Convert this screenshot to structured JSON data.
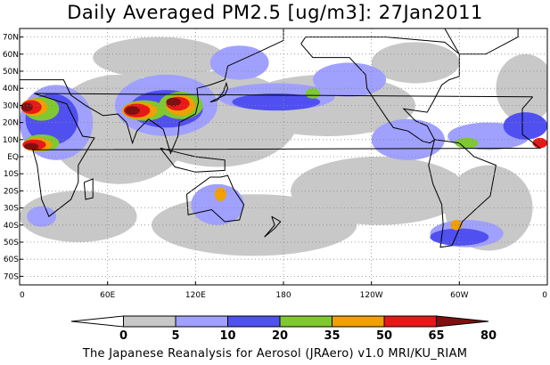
{
  "title": "Daily Averaged PM2.5 [ug/m3]: 27Jan2011",
  "credit": "The Japanese Reanalysis for Aerosol (JRAero) v1.0 MRI/KU_RIAM",
  "map": {
    "projection": "Plate Carree, Pacific-centered",
    "lon_range": [
      0,
      360
    ],
    "lat_range": [
      -75,
      75
    ],
    "lat_ticks": [
      {
        "value": 70,
        "label": "70N"
      },
      {
        "value": 60,
        "label": "60N"
      },
      {
        "value": 50,
        "label": "50N"
      },
      {
        "value": 40,
        "label": "40N"
      },
      {
        "value": 30,
        "label": "30N"
      },
      {
        "value": 20,
        "label": "20N"
      },
      {
        "value": 10,
        "label": "10N"
      },
      {
        "value": 0,
        "label": "EQ"
      },
      {
        "value": -10,
        "label": "10S"
      },
      {
        "value": -20,
        "label": "20S"
      },
      {
        "value": -30,
        "label": "30S"
      },
      {
        "value": -40,
        "label": "40S"
      },
      {
        "value": -50,
        "label": "50S"
      },
      {
        "value": -60,
        "label": "60S"
      },
      {
        "value": -70,
        "label": "70S"
      }
    ],
    "lon_ticks": [
      {
        "value": 0,
        "label": "0"
      },
      {
        "value": 60,
        "label": "60E"
      },
      {
        "value": 120,
        "label": "120E"
      },
      {
        "value": 180,
        "label": "180"
      },
      {
        "value": 240,
        "label": "120W"
      },
      {
        "value": 300,
        "label": "60W"
      },
      {
        "value": 360,
        "label": "0"
      }
    ],
    "grid": "dotted",
    "coastline_color": "#000000"
  },
  "colorbar": {
    "labels": [
      "0",
      "5",
      "10",
      "20",
      "35",
      "50",
      "65",
      "80"
    ],
    "colors": [
      "#ffffff",
      "#c8c8c8",
      "#a0a0ff",
      "#5050f0",
      "#80c830",
      "#f0a000",
      "#e81818",
      "#801010"
    ]
  },
  "fields": [
    {
      "level": 1,
      "color": "#c8c8c8",
      "regions": [
        {
          "lon": 68,
          "lat": 16,
          "rlon": 48,
          "rlat": 32
        },
        {
          "lon": 135,
          "lat": 22,
          "rlon": 55,
          "rlat": 28
        },
        {
          "lon": 210,
          "lat": 30,
          "rlon": 60,
          "rlat": 18
        },
        {
          "lon": 245,
          "lat": -20,
          "rlon": 60,
          "rlat": 20
        },
        {
          "lon": 160,
          "lat": -40,
          "rlon": 70,
          "rlat": 18
        },
        {
          "lon": 40,
          "lat": -35,
          "rlon": 40,
          "rlat": 15
        },
        {
          "lon": 320,
          "lat": -30,
          "rlon": 30,
          "rlat": 25
        },
        {
          "lon": 345,
          "lat": 40,
          "rlon": 20,
          "rlat": 20
        },
        {
          "lon": 95,
          "lat": 58,
          "rlon": 45,
          "rlat": 12
        },
        {
          "lon": 270,
          "lat": 55,
          "rlon": 30,
          "rlat": 12
        }
      ]
    },
    {
      "level": 2,
      "color": "#a0a0ff",
      "regions": [
        {
          "lon": 25,
          "lat": 20,
          "rlon": 25,
          "rlat": 22
        },
        {
          "lon": 100,
          "lat": 30,
          "rlon": 35,
          "rlat": 18
        },
        {
          "lon": 175,
          "lat": 35,
          "rlon": 40,
          "rlat": 8
        },
        {
          "lon": 225,
          "lat": 45,
          "rlon": 25,
          "rlat": 10
        },
        {
          "lon": 265,
          "lat": 10,
          "rlon": 25,
          "rlat": 12
        },
        {
          "lon": 320,
          "lat": 12,
          "rlon": 28,
          "rlat": 8
        },
        {
          "lon": 135,
          "lat": -28,
          "rlon": 18,
          "rlat": 12
        },
        {
          "lon": 305,
          "lat": -45,
          "rlon": 25,
          "rlat": 8
        },
        {
          "lon": 15,
          "lat": -35,
          "rlon": 10,
          "rlat": 6
        },
        {
          "lon": 150,
          "lat": 55,
          "rlon": 20,
          "rlat": 10
        }
      ]
    },
    {
      "level": 3,
      "color": "#5050f0",
      "regions": [
        {
          "lon": 22,
          "lat": 22,
          "rlon": 18,
          "rlat": 15
        },
        {
          "lon": 100,
          "lat": 28,
          "rlon": 25,
          "rlat": 11
        },
        {
          "lon": 175,
          "lat": 32,
          "rlon": 30,
          "rlat": 5
        },
        {
          "lon": 300,
          "lat": -47,
          "rlon": 20,
          "rlat": 5
        },
        {
          "lon": 345,
          "lat": 18,
          "rlon": 15,
          "rlat": 8
        }
      ]
    },
    {
      "level": 4,
      "color": "#80c830",
      "regions": [
        {
          "lon": 15,
          "lat": 28,
          "rlon": 12,
          "rlat": 7
        },
        {
          "lon": 15,
          "lat": 8,
          "rlon": 12,
          "rlat": 5
        },
        {
          "lon": 85,
          "lat": 27,
          "rlon": 15,
          "rlat": 6
        },
        {
          "lon": 110,
          "lat": 30,
          "rlon": 15,
          "rlat": 8
        },
        {
          "lon": 200,
          "lat": 37,
          "rlon": 5,
          "rlat": 3
        },
        {
          "lon": 305,
          "lat": 8,
          "rlon": 8,
          "rlat": 3
        }
      ]
    },
    {
      "level": 5,
      "color": "#f0a000",
      "regions": [
        {
          "lon": 10,
          "lat": 29,
          "rlon": 9,
          "rlat": 5
        },
        {
          "lon": 12,
          "lat": 7,
          "rlon": 10,
          "rlat": 4
        },
        {
          "lon": 82,
          "lat": 27,
          "rlon": 12,
          "rlat": 5
        },
        {
          "lon": 110,
          "lat": 30,
          "rlon": 10,
          "rlat": 6
        },
        {
          "lon": 137,
          "lat": -22,
          "rlon": 4,
          "rlat": 4
        },
        {
          "lon": 298,
          "lat": -40,
          "rlon": 4,
          "rlat": 3
        }
      ]
    },
    {
      "level": 6,
      "color": "#e81818",
      "regions": [
        {
          "lon": 8,
          "lat": 29,
          "rlon": 7,
          "rlat": 4
        },
        {
          "lon": 10,
          "lat": 7,
          "rlon": 8,
          "rlat": 3
        },
        {
          "lon": 80,
          "lat": 27,
          "rlon": 9,
          "rlat": 4
        },
        {
          "lon": 108,
          "lat": 31,
          "rlon": 8,
          "rlat": 4
        },
        {
          "lon": 355,
          "lat": 8,
          "rlon": 5,
          "rlat": 3
        }
      ]
    },
    {
      "level": 7,
      "color": "#801010",
      "regions": [
        {
          "lon": 5,
          "lat": 29,
          "rlon": 4,
          "rlat": 2.5
        },
        {
          "lon": 8,
          "lat": 6,
          "rlon": 5,
          "rlat": 2
        },
        {
          "lon": 77,
          "lat": 27,
          "rlon": 5,
          "rlat": 2.5
        },
        {
          "lon": 105,
          "lat": 32,
          "rlon": 5,
          "rlat": 2.5
        }
      ]
    }
  ],
  "coastlines": [
    {
      "name": "africa",
      "pts": [
        [
          350,
          35
        ],
        [
          10,
          37
        ],
        [
          32,
          31
        ],
        [
          43,
          12
        ],
        [
          51,
          11
        ],
        [
          40,
          -5
        ],
        [
          40,
          -15
        ],
        [
          35,
          -25
        ],
        [
          20,
          -35
        ],
        [
          15,
          -25
        ],
        [
          12,
          -5
        ],
        [
          9,
          4
        ],
        [
          355,
          5
        ],
        [
          343,
          13
        ],
        [
          343,
          28
        ],
        [
          350,
          35
        ]
      ]
    },
    {
      "name": "eurasia",
      "pts": [
        [
          0,
          45
        ],
        [
          30,
          45
        ],
        [
          35,
          36
        ],
        [
          45,
          30
        ],
        [
          57,
          24
        ],
        [
          67,
          25
        ],
        [
          73,
          20
        ],
        [
          77,
          8
        ],
        [
          80,
          15
        ],
        [
          88,
          22
        ],
        [
          98,
          16
        ],
        [
          103,
          2
        ],
        [
          108,
          12
        ],
        [
          109,
          20
        ],
        [
          120,
          25
        ],
        [
          122,
          32
        ],
        [
          121,
          40
        ],
        [
          130,
          42
        ],
        [
          140,
          45
        ],
        [
          142,
          53
        ],
        [
          160,
          60
        ],
        [
          180,
          68
        ],
        [
          180,
          75
        ],
        [
          0,
          75
        ],
        [
          0,
          45
        ]
      ]
    },
    {
      "name": "indonesia",
      "pts": [
        [
          96,
          5
        ],
        [
          106,
          -6
        ],
        [
          120,
          -9
        ],
        [
          140,
          -8
        ],
        [
          140,
          -2
        ],
        [
          120,
          0
        ],
        [
          110,
          2
        ],
        [
          96,
          5
        ]
      ]
    },
    {
      "name": "australia",
      "pts": [
        [
          114,
          -22
        ],
        [
          130,
          -12
        ],
        [
          137,
          -12
        ],
        [
          142,
          -11
        ],
        [
          146,
          -19
        ],
        [
          153,
          -28
        ],
        [
          150,
          -37
        ],
        [
          140,
          -38
        ],
        [
          131,
          -31
        ],
        [
          115,
          -34
        ],
        [
          114,
          -22
        ]
      ]
    },
    {
      "name": "north-america",
      "pts": [
        [
          192,
          66
        ],
        [
          200,
          58
        ],
        [
          225,
          58
        ],
        [
          236,
          48
        ],
        [
          237,
          40
        ],
        [
          243,
          32
        ],
        [
          250,
          23
        ],
        [
          255,
          17
        ],
        [
          265,
          15
        ],
        [
          275,
          9
        ],
        [
          280,
          8
        ],
        [
          283,
          10
        ],
        [
          278,
          18
        ],
        [
          270,
          21
        ],
        [
          262,
          28
        ],
        [
          278,
          26
        ],
        [
          282,
          32
        ],
        [
          288,
          42
        ],
        [
          293,
          45
        ],
        [
          300,
          47
        ],
        [
          300,
          60
        ],
        [
          290,
          67
        ],
        [
          250,
          70
        ],
        [
          195,
          70
        ],
        [
          192,
          66
        ]
      ]
    },
    {
      "name": "south-america",
      "pts": [
        [
          283,
          10
        ],
        [
          300,
          8
        ],
        [
          310,
          0
        ],
        [
          325,
          -5
        ],
        [
          321,
          -23
        ],
        [
          312,
          -30
        ],
        [
          302,
          -38
        ],
        [
          295,
          -52
        ],
        [
          287,
          -53
        ],
        [
          289,
          -40
        ],
        [
          288,
          -28
        ],
        [
          282,
          -16
        ],
        [
          279,
          -5
        ],
        [
          283,
          10
        ]
      ]
    },
    {
      "name": "japan",
      "pts": [
        [
          130,
          32
        ],
        [
          135,
          34
        ],
        [
          140,
          36
        ],
        [
          142,
          40
        ],
        [
          141,
          43
        ],
        [
          139,
          38
        ],
        [
          135,
          33
        ],
        [
          130,
          32
        ]
      ]
    },
    {
      "name": "madagascar",
      "pts": [
        [
          44,
          -15
        ],
        [
          50,
          -13
        ],
        [
          50,
          -24
        ],
        [
          45,
          -25
        ],
        [
          44,
          -15
        ]
      ]
    },
    {
      "name": "new-zealand",
      "pts": [
        [
          172,
          -35
        ],
        [
          178,
          -38
        ],
        [
          174,
          -42
        ],
        [
          167,
          -47
        ],
        [
          170,
          -44
        ],
        [
          174,
          -40
        ],
        [
          172,
          -35
        ]
      ]
    },
    {
      "name": "greenland",
      "pts": [
        [
          300,
          60
        ],
        [
          318,
          60
        ],
        [
          340,
          70
        ],
        [
          340,
          75
        ],
        [
          290,
          75
        ],
        [
          300,
          60
        ]
      ]
    }
  ]
}
